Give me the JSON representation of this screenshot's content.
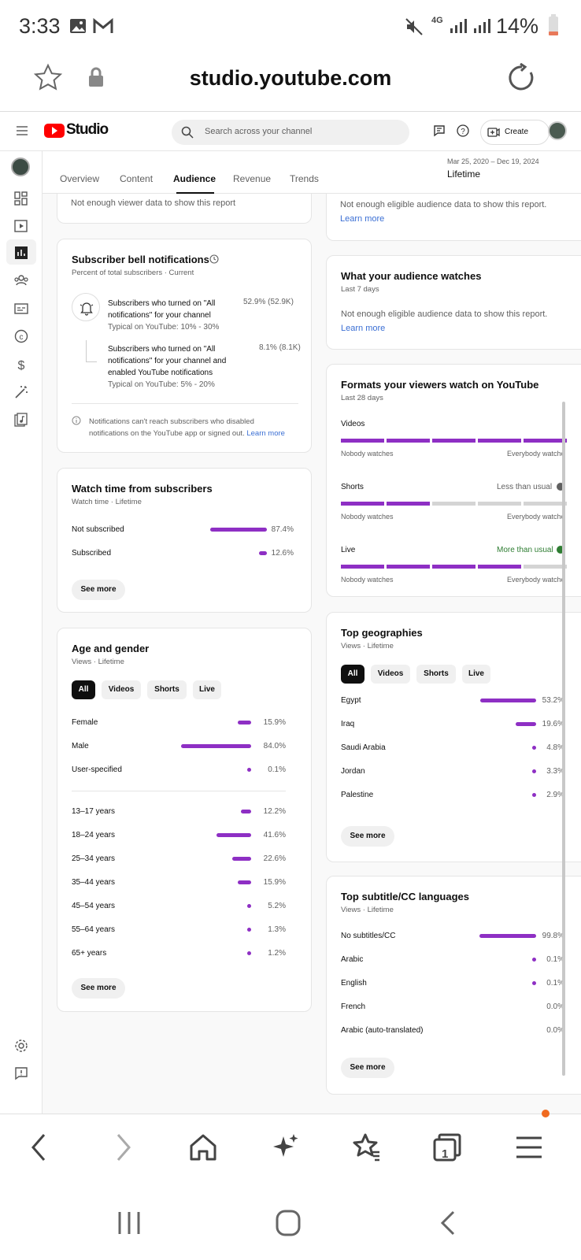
{
  "status_bar": {
    "time": "3:33",
    "battery": "14%",
    "network": "4G"
  },
  "browser": {
    "url": "studio.youtube.com"
  },
  "header": {
    "logo": "Studio",
    "search_placeholder": "Search across your channel",
    "create_label": "Create"
  },
  "tabs": [
    {
      "label": "Overview"
    },
    {
      "label": "Content"
    },
    {
      "label": "Audience",
      "active": true
    },
    {
      "label": "Revenue"
    },
    {
      "label": "Trends"
    }
  ],
  "date_range": {
    "range": "Mar 25, 2020 – Dec 19, 2024",
    "label": "Lifetime"
  },
  "left_col": {
    "top_card": {
      "message": "Not enough viewer data to show this report"
    },
    "bell": {
      "title": "Subscriber bell notifications",
      "subtitle": "Percent of total subscribers · Current",
      "row1_line1": "Subscribers who turned on \"All",
      "row1_line2": "notifications\" for your channel",
      "row1_typical": "Typical on YouTube: 10% - 30%",
      "row1_value": "52.9% (52.9K)",
      "row2_line1": "Subscribers who turned on \"All",
      "row2_line2": "notifications\" for your channel and",
      "row2_line3": "enabled YouTube notifications",
      "row2_typical": "Typical on YouTube: 5% - 20%",
      "row2_value": "8.1% (8.1K)",
      "note_line1": "Notifications can't reach subscribers who disabled",
      "note_line2": "notifications on the YouTube app or signed out.",
      "learn_more": "Learn more"
    },
    "watch_time": {
      "title": "Watch time from subscribers",
      "subtitle": "Watch time · Lifetime",
      "rows": [
        {
          "label": "Not subscribed",
          "value": "87.4%",
          "fraction": 0.874
        },
        {
          "label": "Subscribed",
          "value": "12.6%",
          "fraction": 0.126
        }
      ],
      "see_more": "See more"
    },
    "age_gender": {
      "title": "Age and gender",
      "subtitle": "Views · Lifetime",
      "filters": [
        "All",
        "Videos",
        "Shorts",
        "Live"
      ],
      "gender": [
        {
          "label": "Female",
          "value": "15.9%",
          "fraction": 0.159
        },
        {
          "label": "Male",
          "value": "84.0%",
          "fraction": 0.84
        },
        {
          "label": "User-specified",
          "value": "0.1%",
          "fraction": 0.001
        }
      ],
      "age": [
        {
          "label": "13–17 years",
          "value": "12.2%",
          "fraction": 0.122
        },
        {
          "label": "18–24 years",
          "value": "41.6%",
          "fraction": 0.416
        },
        {
          "label": "25–34 years",
          "value": "22.6%",
          "fraction": 0.226
        },
        {
          "label": "35–44 years",
          "value": "15.9%",
          "fraction": 0.159
        },
        {
          "label": "45–54 years",
          "value": "5.2%",
          "fraction": 0.052
        },
        {
          "label": "55–64 years",
          "value": "1.3%",
          "fraction": 0.013
        },
        {
          "label": "65+ years",
          "value": "1.2%",
          "fraction": 0.012
        }
      ],
      "see_more": "See more"
    }
  },
  "right_col": {
    "top_card": {
      "message": "Not enough eligible audience data to show this report.",
      "learn_more": "Learn more"
    },
    "watches": {
      "title": "What your audience watches",
      "subtitle": "Last 7 days",
      "message": "Not enough eligible audience data to show this report.",
      "learn_more": "Learn more"
    },
    "formats": {
      "title": "Formats your viewers watch on YouTube",
      "subtitle": "Last 28 days",
      "low": "Nobody watches",
      "high": "Everybody watche",
      "rows": [
        {
          "label": "Videos",
          "badge": "",
          "filled": 5,
          "total": 5
        },
        {
          "label": "Shorts",
          "badge": "Less than usual",
          "filled": 2,
          "total": 5
        },
        {
          "label": "Live",
          "badge": "More than usual",
          "filled": 4,
          "total": 5
        }
      ]
    },
    "geo": {
      "title": "Top geographies",
      "subtitle": "Views · Lifetime",
      "filters": [
        "All",
        "Videos",
        "Shorts",
        "Live"
      ],
      "rows": [
        {
          "label": "Egypt",
          "value": "53.2%",
          "fraction": 0.532
        },
        {
          "label": "Iraq",
          "value": "19.6%",
          "fraction": 0.196
        },
        {
          "label": "Saudi Arabia",
          "value": "4.8%",
          "fraction": 0.048
        },
        {
          "label": "Jordan",
          "value": "3.3%",
          "fraction": 0.033
        },
        {
          "label": "Palestine",
          "value": "2.9%",
          "fraction": 0.029
        }
      ],
      "see_more": "See more"
    },
    "subtitles": {
      "title": "Top subtitle/CC languages",
      "subtitle": "Views · Lifetime",
      "rows": [
        {
          "label": "No subtitles/CC",
          "value": "99.8%",
          "fraction": 0.998
        },
        {
          "label": "Arabic",
          "value": "0.1%",
          "fraction": 0.001
        },
        {
          "label": "English",
          "value": "0.1%",
          "fraction": 0.001
        },
        {
          "label": "French",
          "value": "0.0%",
          "fraction": 0
        },
        {
          "label": "Arabic (auto-translated)",
          "value": "0.0%",
          "fraction": 0
        }
      ],
      "see_more": "See more"
    }
  },
  "colors": {
    "bar": "#8e2fc4",
    "link": "#3b6fd4",
    "positive": "#2e7d32",
    "youtube_red": "#ff0000"
  },
  "bottom_nav": {
    "tab_count": "1"
  }
}
